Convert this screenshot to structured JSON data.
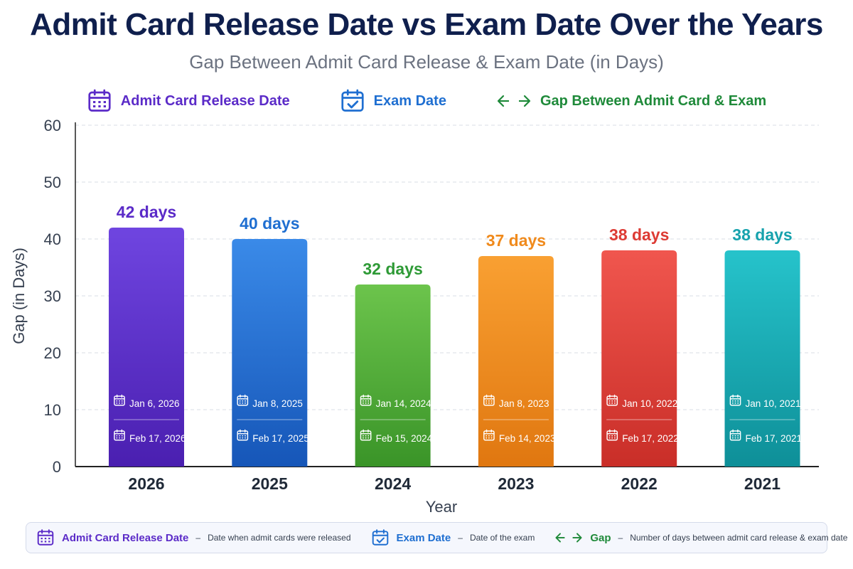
{
  "title": "Admit Card Release Date vs Exam Date Over the Years",
  "subtitle": "Gap Between Admit Card Release & Exam Date (in Days)",
  "legend": {
    "admit": {
      "label": "Admit Card Release Date",
      "color": "#5b2bc8",
      "icon": "calendar-icon"
    },
    "exam": {
      "label": "Exam Date",
      "color": "#1f6fd1",
      "icon": "calendar-check-icon"
    },
    "gap": {
      "label": "Gap Between Admit Card & Exam",
      "color": "#1f8a3a",
      "icon": "double-arrow-icon"
    }
  },
  "bottom_legend": {
    "admit": {
      "label": "Admit Card Release Date",
      "dash": "–",
      "desc": "Date when admit cards were released"
    },
    "exam": {
      "label": "Exam Date",
      "dash": "–",
      "desc": "Date of the exam"
    },
    "gap": {
      "label": "Gap",
      "dash": "–",
      "desc": "Number of days between admit card release & exam date"
    }
  },
  "chart_data": {
    "type": "bar",
    "title": "Admit Card Release Date vs Exam Date Over the Years",
    "subtitle": "Gap Between Admit Card Release & Exam Date (in Days)",
    "xlabel": "Year",
    "ylabel": "Gap (in Days)",
    "ylim": [
      0,
      60
    ],
    "yticks": [
      "0",
      "10",
      "20",
      "30",
      "40",
      "50",
      "60"
    ],
    "grid": true,
    "legend_position": "top",
    "categories": [
      "2026",
      "2025",
      "2024",
      "2023",
      "2022",
      "2021"
    ],
    "values": [
      42,
      40,
      32,
      37,
      38,
      38
    ],
    "bar_labels": [
      "42 days",
      "40 days",
      "32 days",
      "37 days",
      "38 days",
      "38 days"
    ],
    "admit_dates": [
      "Jan 6, 2026",
      "Jan 8, 2025",
      "Jan 14, 2024",
      "Jan 8, 2023",
      "Jan 10, 2022",
      "Jan 10, 2021"
    ],
    "exam_dates": [
      "Feb 17, 2026",
      "Feb 17, 2025",
      "Feb 15, 2024",
      "Feb 14, 2023",
      "Feb 17, 2022",
      "Feb 17, 2021"
    ],
    "colors": [
      "#5b2bc8",
      "#1f6fd1",
      "#4aa832",
      "#f08a1c",
      "#dd3b34",
      "#17a9b3"
    ],
    "colors_light": [
      "#6f45e0",
      "#3a8ae8",
      "#6cc44c",
      "#f9a032",
      "#f0564e",
      "#26c3cb"
    ],
    "colors_dark": [
      "#4a1fb0",
      "#1656b8",
      "#3a9428",
      "#e07710",
      "#c92e28",
      "#0e8f98"
    ],
    "label_colors": [
      "#5b2bc8",
      "#1f6fd1",
      "#2e9a36",
      "#f08a1c",
      "#dd3b34",
      "#17a2ad"
    ]
  }
}
